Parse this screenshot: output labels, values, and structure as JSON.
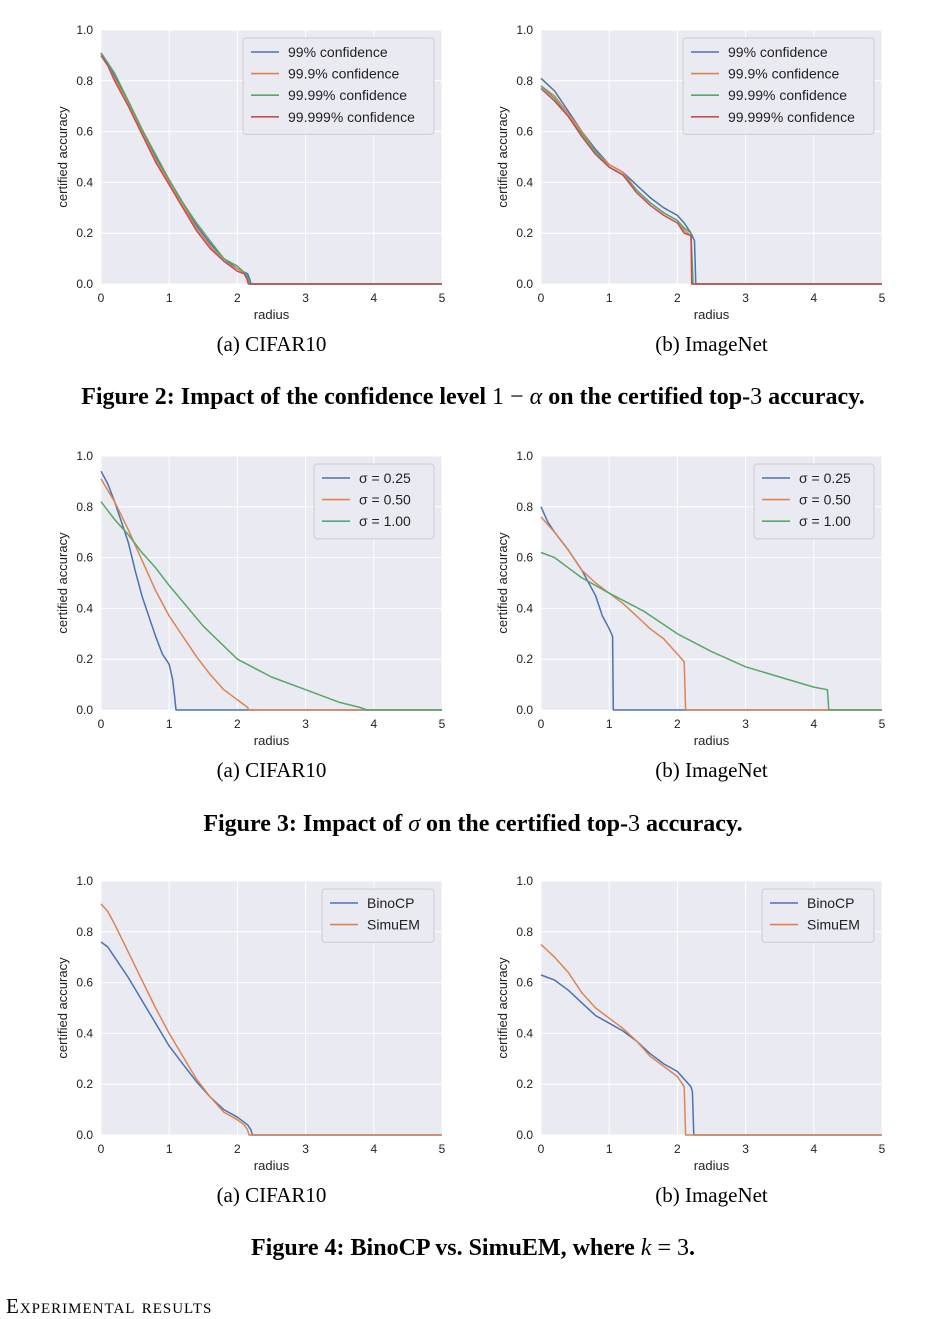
{
  "figures": [
    {
      "id": "fig2",
      "caption": {
        "prefix": "Figure 2: Impact of the confidence level ",
        "math_a": "1 − ",
        "math_b": "α",
        "suffix_a": " on the certified top-",
        "math_c": "3",
        "suffix_b": " accuracy."
      }
    },
    {
      "id": "fig3",
      "caption": {
        "prefix": "Figure 3: Impact of ",
        "math_a": "σ",
        "suffix_a": " on the certified top-",
        "math_c": "3",
        "suffix_b": " accuracy."
      }
    },
    {
      "id": "fig4",
      "caption": {
        "prefix": "Figure 4: BinoCP vs. SimuEM, where ",
        "math_a": "k",
        "math_b": " = 3",
        "suffix_a": "."
      }
    }
  ],
  "section_heading": "Experimental results",
  "chart_data": [
    {
      "figure": "fig2",
      "panel": "a",
      "subcaption": "(a) CIFAR10",
      "type": "line",
      "xlabel": "radius",
      "ylabel": "certified accuracy",
      "xlim": [
        0,
        5
      ],
      "ylim": [
        0,
        1.0
      ],
      "xticks": [
        "0",
        "1",
        "2",
        "3",
        "4",
        "5"
      ],
      "yticks": [
        "0.0",
        "0.2",
        "0.4",
        "0.6",
        "0.8",
        "1.0"
      ],
      "grid": true,
      "legend_position": "top-right",
      "series": [
        {
          "name": "99% confidence",
          "color": "#4c72b0",
          "x": [
            0,
            0.1,
            0.2,
            0.4,
            0.6,
            0.8,
            1.0,
            1.2,
            1.4,
            1.6,
            1.8,
            2.0,
            2.15,
            2.18,
            2.2,
            5.0
          ],
          "y": [
            0.91,
            0.87,
            0.82,
            0.72,
            0.61,
            0.5,
            0.41,
            0.32,
            0.23,
            0.16,
            0.1,
            0.06,
            0.04,
            0.02,
            0.0,
            0.0
          ]
        },
        {
          "name": "99.9% confidence",
          "color": "#dd8452",
          "x": [
            0,
            0.1,
            0.2,
            0.4,
            0.6,
            0.8,
            1.0,
            1.2,
            1.4,
            1.6,
            1.8,
            2.0,
            2.12,
            2.16,
            2.18,
            5.0
          ],
          "y": [
            0.9,
            0.86,
            0.81,
            0.71,
            0.6,
            0.49,
            0.4,
            0.31,
            0.22,
            0.15,
            0.09,
            0.06,
            0.04,
            0.02,
            0.0,
            0.0
          ]
        },
        {
          "name": "99.99% confidence",
          "color": "#55a868",
          "x": [
            0,
            0.1,
            0.2,
            0.4,
            0.6,
            0.8,
            1.0,
            1.2,
            1.4,
            1.6,
            1.8,
            2.0,
            2.12,
            2.16,
            2.18,
            5.0
          ],
          "y": [
            0.91,
            0.87,
            0.83,
            0.72,
            0.61,
            0.51,
            0.41,
            0.32,
            0.24,
            0.17,
            0.1,
            0.07,
            0.04,
            0.02,
            0.0,
            0.0
          ]
        },
        {
          "name": "99.999% confidence",
          "color": "#c44e52",
          "x": [
            0,
            0.1,
            0.2,
            0.4,
            0.6,
            0.8,
            1.0,
            1.2,
            1.4,
            1.6,
            1.8,
            2.0,
            2.1,
            2.14,
            2.16,
            5.0
          ],
          "y": [
            0.9,
            0.86,
            0.8,
            0.7,
            0.59,
            0.48,
            0.39,
            0.3,
            0.21,
            0.14,
            0.09,
            0.05,
            0.04,
            0.02,
            0.0,
            0.0
          ]
        }
      ]
    },
    {
      "figure": "fig2",
      "panel": "b",
      "subcaption": "(b) ImageNet",
      "type": "line",
      "xlabel": "radius",
      "ylabel": "certified accuracy",
      "xlim": [
        0,
        5
      ],
      "ylim": [
        0,
        1.0
      ],
      "xticks": [
        "0",
        "1",
        "2",
        "3",
        "4",
        "5"
      ],
      "yticks": [
        "0.0",
        "0.2",
        "0.4",
        "0.6",
        "0.8",
        "1.0"
      ],
      "grid": true,
      "legend_position": "top-right",
      "series": [
        {
          "name": "99% confidence",
          "color": "#4c72b0",
          "x": [
            0,
            0.2,
            0.4,
            0.6,
            0.8,
            1.0,
            1.2,
            1.4,
            1.6,
            1.8,
            2.0,
            2.1,
            2.2,
            2.25,
            2.27,
            5.0
          ],
          "y": [
            0.81,
            0.76,
            0.68,
            0.6,
            0.53,
            0.47,
            0.44,
            0.39,
            0.34,
            0.3,
            0.27,
            0.24,
            0.2,
            0.17,
            0.0,
            0.0
          ]
        },
        {
          "name": "99.9% confidence",
          "color": "#dd8452",
          "x": [
            0,
            0.2,
            0.4,
            0.6,
            0.8,
            1.0,
            1.2,
            1.4,
            1.6,
            1.8,
            2.0,
            2.1,
            2.2,
            2.22,
            5.0
          ],
          "y": [
            0.78,
            0.74,
            0.67,
            0.6,
            0.52,
            0.47,
            0.44,
            0.37,
            0.32,
            0.28,
            0.25,
            0.21,
            0.19,
            0.0,
            0.0
          ]
        },
        {
          "name": "99.99% confidence",
          "color": "#55a868",
          "x": [
            0,
            0.2,
            0.4,
            0.6,
            0.8,
            1.0,
            1.2,
            1.4,
            1.6,
            1.8,
            2.0,
            2.1,
            2.2,
            2.23,
            5.0
          ],
          "y": [
            0.78,
            0.73,
            0.66,
            0.59,
            0.52,
            0.46,
            0.43,
            0.37,
            0.32,
            0.28,
            0.25,
            0.22,
            0.2,
            0.0,
            0.0
          ]
        },
        {
          "name": "99.999% confidence",
          "color": "#c44e52",
          "x": [
            0,
            0.2,
            0.4,
            0.6,
            0.8,
            1.0,
            1.2,
            1.4,
            1.6,
            1.8,
            2.0,
            2.1,
            2.2,
            2.21,
            5.0
          ],
          "y": [
            0.77,
            0.72,
            0.66,
            0.58,
            0.51,
            0.46,
            0.43,
            0.36,
            0.31,
            0.27,
            0.24,
            0.2,
            0.19,
            0.0,
            0.0
          ]
        }
      ]
    },
    {
      "figure": "fig3",
      "panel": "a",
      "subcaption": "(a) CIFAR10",
      "type": "line",
      "xlabel": "radius",
      "ylabel": "certified accuracy",
      "xlim": [
        0,
        5
      ],
      "ylim": [
        0,
        1.0
      ],
      "xticks": [
        "0",
        "1",
        "2",
        "3",
        "4",
        "5"
      ],
      "yticks": [
        "0.0",
        "0.2",
        "0.4",
        "0.6",
        "0.8",
        "1.0"
      ],
      "grid": true,
      "legend_position": "top-right",
      "series": [
        {
          "name": "σ = 0.25",
          "color": "#4c72b0",
          "x": [
            0,
            0.1,
            0.2,
            0.3,
            0.4,
            0.5,
            0.6,
            0.7,
            0.8,
            0.9,
            1.0,
            1.05,
            1.08,
            1.1,
            5.0
          ],
          "y": [
            0.94,
            0.89,
            0.82,
            0.74,
            0.66,
            0.55,
            0.45,
            0.37,
            0.29,
            0.22,
            0.18,
            0.12,
            0.05,
            0.0,
            0.0
          ]
        },
        {
          "name": "σ = 0.50",
          "color": "#dd8452",
          "x": [
            0,
            0.2,
            0.4,
            0.6,
            0.8,
            1.0,
            1.2,
            1.4,
            1.6,
            1.8,
            2.0,
            2.1,
            2.15,
            2.17,
            5.0
          ],
          "y": [
            0.91,
            0.82,
            0.71,
            0.59,
            0.47,
            0.37,
            0.29,
            0.21,
            0.14,
            0.08,
            0.04,
            0.02,
            0.01,
            0.0,
            0.0
          ]
        },
        {
          "name": "σ = 1.00",
          "color": "#55a868",
          "x": [
            0,
            0.2,
            0.4,
            0.6,
            0.8,
            1.0,
            1.5,
            2.0,
            2.5,
            3.0,
            3.5,
            3.8,
            3.9,
            5.0
          ],
          "y": [
            0.82,
            0.75,
            0.69,
            0.62,
            0.56,
            0.49,
            0.33,
            0.2,
            0.13,
            0.08,
            0.03,
            0.01,
            0.0,
            0.0
          ]
        }
      ]
    },
    {
      "figure": "fig3",
      "panel": "b",
      "subcaption": "(b) ImageNet",
      "type": "line",
      "xlabel": "radius",
      "ylabel": "certified accuracy",
      "xlim": [
        0,
        5
      ],
      "ylim": [
        0,
        1.0
      ],
      "xticks": [
        "0",
        "1",
        "2",
        "3",
        "4",
        "5"
      ],
      "yticks": [
        "0.0",
        "0.2",
        "0.4",
        "0.6",
        "0.8",
        "1.0"
      ],
      "grid": true,
      "legend_position": "top-right",
      "series": [
        {
          "name": "σ = 0.25",
          "color": "#4c72b0",
          "x": [
            0,
            0.1,
            0.2,
            0.4,
            0.6,
            0.8,
            0.9,
            1.0,
            1.05,
            1.06,
            5.0
          ],
          "y": [
            0.8,
            0.74,
            0.7,
            0.63,
            0.55,
            0.45,
            0.37,
            0.32,
            0.29,
            0.0,
            0.0
          ]
        },
        {
          "name": "σ = 0.50",
          "color": "#dd8452",
          "x": [
            0,
            0.2,
            0.4,
            0.6,
            0.8,
            1.0,
            1.2,
            1.4,
            1.6,
            1.8,
            2.0,
            2.1,
            2.12,
            5.0
          ],
          "y": [
            0.76,
            0.7,
            0.63,
            0.55,
            0.5,
            0.46,
            0.42,
            0.37,
            0.32,
            0.28,
            0.22,
            0.19,
            0.0,
            0.0
          ]
        },
        {
          "name": "σ = 1.00",
          "color": "#55a868",
          "x": [
            0,
            0.2,
            0.4,
            0.6,
            0.8,
            1.0,
            1.5,
            2.0,
            2.5,
            3.0,
            3.5,
            4.0,
            4.2,
            4.22,
            5.0
          ],
          "y": [
            0.62,
            0.6,
            0.56,
            0.52,
            0.49,
            0.46,
            0.39,
            0.3,
            0.23,
            0.17,
            0.13,
            0.09,
            0.08,
            0.0,
            0.0
          ]
        }
      ]
    },
    {
      "figure": "fig4",
      "panel": "a",
      "subcaption": "(a) CIFAR10",
      "type": "line",
      "xlabel": "radius",
      "ylabel": "certified accuracy",
      "xlim": [
        0,
        5
      ],
      "ylim": [
        0,
        1.0
      ],
      "xticks": [
        "0",
        "1",
        "2",
        "3",
        "4",
        "5"
      ],
      "yticks": [
        "0.0",
        "0.2",
        "0.4",
        "0.6",
        "0.8",
        "1.0"
      ],
      "grid": true,
      "legend_position": "top-right",
      "series": [
        {
          "name": "BinoCP",
          "color": "#4c72b0",
          "x": [
            0,
            0.1,
            0.2,
            0.4,
            0.6,
            0.8,
            1.0,
            1.2,
            1.4,
            1.6,
            1.8,
            2.0,
            2.15,
            2.2,
            2.22,
            5.0
          ],
          "y": [
            0.76,
            0.74,
            0.7,
            0.62,
            0.53,
            0.44,
            0.35,
            0.28,
            0.21,
            0.15,
            0.1,
            0.07,
            0.04,
            0.02,
            0.0,
            0.0
          ]
        },
        {
          "name": "SimuEM",
          "color": "#dd8452",
          "x": [
            0,
            0.1,
            0.2,
            0.4,
            0.6,
            0.8,
            1.0,
            1.2,
            1.4,
            1.6,
            1.8,
            2.0,
            2.1,
            2.15,
            2.17,
            5.0
          ],
          "y": [
            0.91,
            0.88,
            0.83,
            0.72,
            0.61,
            0.5,
            0.4,
            0.31,
            0.22,
            0.15,
            0.09,
            0.06,
            0.04,
            0.02,
            0.0,
            0.0
          ]
        }
      ]
    },
    {
      "figure": "fig4",
      "panel": "b",
      "subcaption": "(b) ImageNet",
      "type": "line",
      "xlabel": "radius",
      "ylabel": "certified accuracy",
      "xlim": [
        0,
        5
      ],
      "ylim": [
        0,
        1.0
      ],
      "xticks": [
        "0",
        "1",
        "2",
        "3",
        "4",
        "5"
      ],
      "yticks": [
        "0.0",
        "0.2",
        "0.4",
        "0.6",
        "0.8",
        "1.0"
      ],
      "grid": true,
      "legend_position": "top-right",
      "series": [
        {
          "name": "BinoCP",
          "color": "#4c72b0",
          "x": [
            0,
            0.2,
            0.4,
            0.6,
            0.8,
            1.0,
            1.2,
            1.4,
            1.6,
            1.8,
            2.0,
            2.1,
            2.2,
            2.22,
            2.24,
            5.0
          ],
          "y": [
            0.63,
            0.61,
            0.57,
            0.52,
            0.47,
            0.44,
            0.41,
            0.37,
            0.32,
            0.28,
            0.25,
            0.22,
            0.19,
            0.17,
            0.0,
            0.0
          ]
        },
        {
          "name": "SimuEM",
          "color": "#dd8452",
          "x": [
            0,
            0.2,
            0.4,
            0.6,
            0.8,
            1.0,
            1.2,
            1.4,
            1.6,
            1.8,
            2.0,
            2.1,
            2.12,
            5.0
          ],
          "y": [
            0.75,
            0.7,
            0.64,
            0.56,
            0.5,
            0.46,
            0.42,
            0.37,
            0.31,
            0.27,
            0.23,
            0.19,
            0.0,
            0.0
          ]
        }
      ]
    }
  ]
}
